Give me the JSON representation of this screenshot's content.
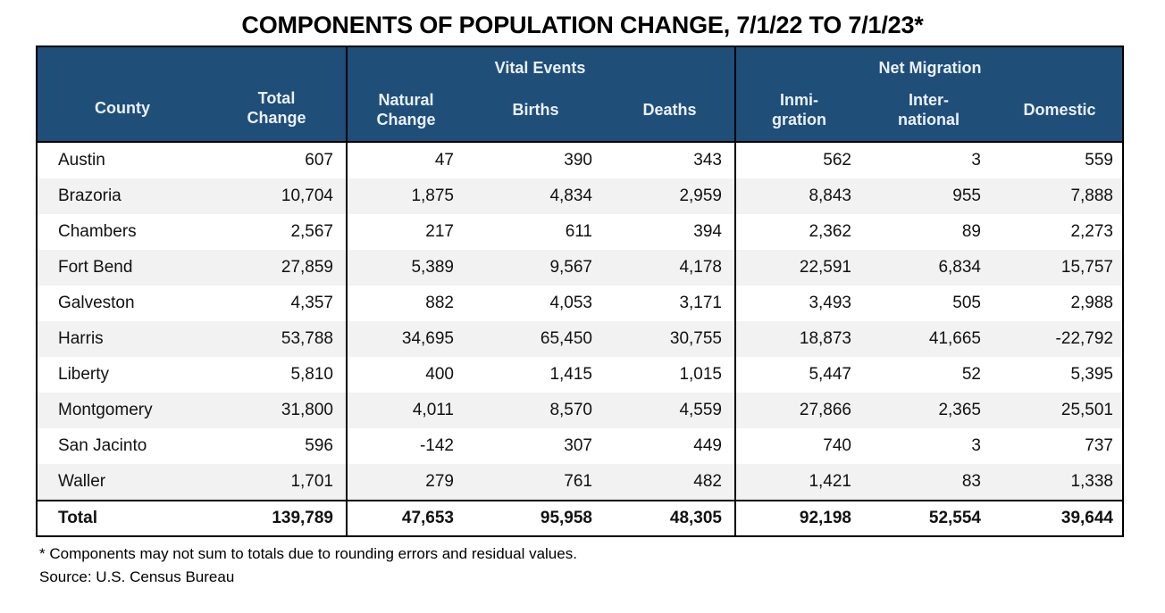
{
  "page": {
    "title": "COMPONENTS OF POPULATION CHANGE, 7/1/22 TO 7/1/23*",
    "footnote": "* Components may not sum to totals due to rounding errors and residual values.",
    "source": "Source: U.S. Census Bureau"
  },
  "colors": {
    "header_bg": "#1F4E79",
    "header_text": "#EAF1F9",
    "row_alt": "#F2F2F2",
    "border": "#000000",
    "text": "#111111"
  },
  "table_header": {
    "groups": {
      "vital_events": "Vital Events",
      "net_migration": "Net Migration"
    },
    "columns": {
      "county": "County",
      "total_change": "Total\nChange",
      "natural_change": "Natural\nChange",
      "births": "Births",
      "deaths": "Deaths",
      "inmigration": "Inmi-\ngration",
      "international": "Inter-\nnational",
      "domestic": "Domestic"
    }
  },
  "chart_data": {
    "type": "table",
    "title": "COMPONENTS OF POPULATION CHANGE, 7/1/22 TO 7/1/23*",
    "columns": [
      "County",
      "Total Change",
      "Natural Change",
      "Births",
      "Deaths",
      "Inmigration",
      "International",
      "Domestic"
    ],
    "column_groups": [
      {
        "label": "Vital Events",
        "columns": [
          "Natural Change",
          "Births",
          "Deaths"
        ]
      },
      {
        "label": "Net Migration",
        "columns": [
          "Inmigration",
          "International",
          "Domestic"
        ]
      }
    ],
    "rows": [
      [
        "Austin",
        607,
        47,
        390,
        343,
        562,
        3,
        559
      ],
      [
        "Brazoria",
        10704,
        1875,
        4834,
        2959,
        8843,
        955,
        7888
      ],
      [
        "Chambers",
        2567,
        217,
        611,
        394,
        2362,
        89,
        2273
      ],
      [
        "Fort Bend",
        27859,
        5389,
        9567,
        4178,
        22591,
        6834,
        15757
      ],
      [
        "Galveston",
        4357,
        882,
        4053,
        3171,
        3493,
        505,
        2988
      ],
      [
        "Harris",
        53788,
        34695,
        65450,
        30755,
        18873,
        41665,
        -22792
      ],
      [
        "Liberty",
        5810,
        400,
        1415,
        1015,
        5447,
        52,
        5395
      ],
      [
        "Montgomery",
        31800,
        4011,
        8570,
        4559,
        27866,
        2365,
        25501
      ],
      [
        "San Jacinto",
        596,
        -142,
        307,
        449,
        740,
        3,
        737
      ],
      [
        "Waller",
        1701,
        279,
        761,
        482,
        1421,
        83,
        1338
      ]
    ],
    "total_row": [
      "Total",
      139789,
      47653,
      95958,
      48305,
      92198,
      52554,
      39644
    ]
  }
}
